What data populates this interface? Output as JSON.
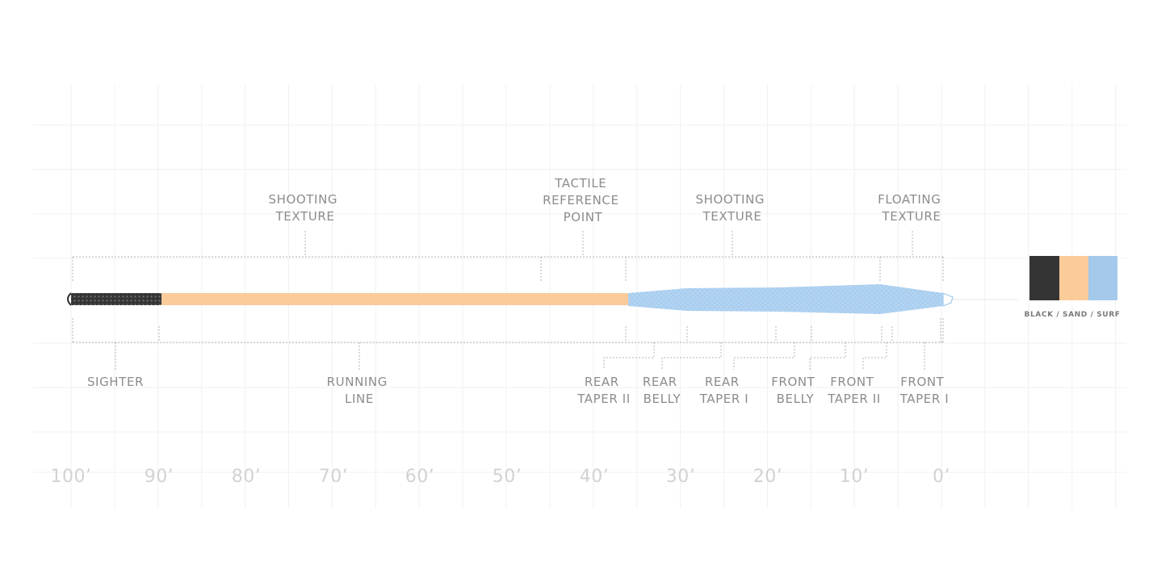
{
  "colors": {
    "black": "#343434",
    "sand": "#fbcb9a",
    "surf": "#a4c9ea",
    "label": "#8c8c8c",
    "ruler": "#d2d2d2"
  },
  "top_labels": [
    {
      "id": "shooting-texture-rear",
      "lines": [
        "SHOOTING",
        "TEXTURE"
      ]
    },
    {
      "id": "tactile-reference-point",
      "lines": [
        "TACTILE",
        "REFERENCE",
        "POINT"
      ]
    },
    {
      "id": "shooting-texture-front",
      "lines": [
        "SHOOTING",
        "TEXTURE"
      ]
    },
    {
      "id": "floating-texture",
      "lines": [
        "FLOATING",
        "TEXTURE"
      ]
    }
  ],
  "bottom_labels": [
    {
      "id": "sighter",
      "lines": [
        "SIGHTER"
      ]
    },
    {
      "id": "running-line",
      "lines": [
        "RUNNING",
        "LINE"
      ]
    },
    {
      "id": "rear-taper-2",
      "lines": [
        "REAR",
        "TAPER II"
      ]
    },
    {
      "id": "rear-belly",
      "lines": [
        "REAR",
        "BELLY"
      ]
    },
    {
      "id": "rear-taper-1",
      "lines": [
        "REAR",
        "TAPER I"
      ]
    },
    {
      "id": "front-belly",
      "lines": [
        "FRONT",
        "BELLY"
      ]
    },
    {
      "id": "front-taper-2",
      "lines": [
        "FRONT",
        "TAPER II"
      ]
    },
    {
      "id": "front-taper-1",
      "lines": [
        "FRONT",
        "TAPER I"
      ]
    }
  ],
  "ruler_labels": [
    "100’",
    "90’",
    "80’",
    "70’",
    "60’",
    "50’",
    "40’",
    "30’",
    "20’",
    "10’",
    "0’"
  ],
  "swatches": {
    "label": "BLACK / SAND / SURF",
    "colors": [
      "#343434",
      "#fbcb9a",
      "#a4c9ea"
    ]
  }
}
